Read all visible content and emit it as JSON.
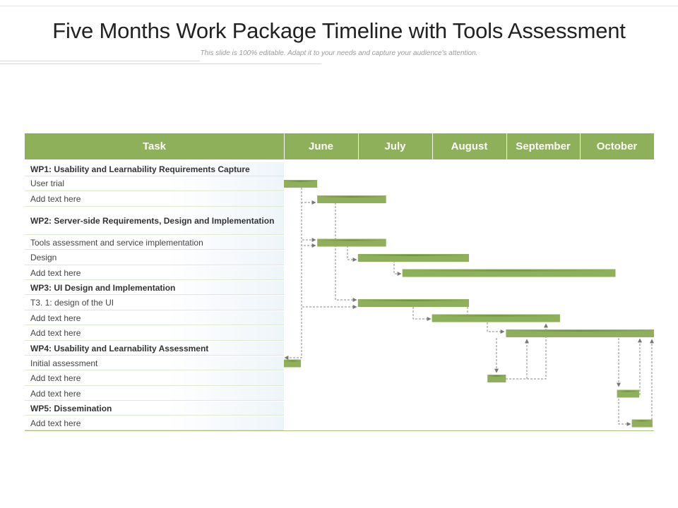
{
  "title": "Five Months Work Package Timeline with Tools Assessment",
  "subtitle": "This slide is 100% editable. Adapt it to your needs and capture your audience's attention.",
  "header": {
    "task_label": "Task",
    "months": [
      "June",
      "July",
      "August",
      "September",
      "October"
    ]
  },
  "rows": [
    {
      "label": "WP1: Usability and Learnability Requirements Capture",
      "kind": "wp"
    },
    {
      "label": "User trial",
      "kind": "task"
    },
    {
      "label": "Add text here",
      "kind": "task"
    },
    {
      "label": "WP2: Server-side Requirements, Design and Implementation",
      "kind": "wp"
    },
    {
      "label": "Tools assessment and service implementation",
      "kind": "task"
    },
    {
      "label": "Design",
      "kind": "task"
    },
    {
      "label": "Add text here",
      "kind": "task"
    },
    {
      "label": "WP3: UI Design and Implementation",
      "kind": "wp"
    },
    {
      "label": "T3. 1: design of the UI",
      "kind": "task"
    },
    {
      "label": "Add text here",
      "kind": "task"
    },
    {
      "label": "Add text here",
      "kind": "task"
    },
    {
      "label": "WP4: Usability and Learnability Assessment",
      "kind": "wp"
    },
    {
      "label": "Initial assessment",
      "kind": "task"
    },
    {
      "label": "Add text here",
      "kind": "task"
    },
    {
      "label": "Add text here",
      "kind": "task"
    },
    {
      "label": "WP5: Dissemination",
      "kind": "wp"
    },
    {
      "label": "Add text here",
      "kind": "task"
    }
  ],
  "colors": {
    "header_bg": "#8eb05a",
    "bar": "#8eb05a",
    "bar_shade": "#6e8f3d",
    "connector": "#8a8a8a"
  },
  "chart_data": {
    "type": "gantt",
    "time_unit": "months",
    "months": [
      "June",
      "July",
      "August",
      "September",
      "October"
    ],
    "bars": [
      {
        "row": 1,
        "start": 0.0,
        "end": 0.45
      },
      {
        "row": 2,
        "start": 0.45,
        "end": 1.38
      },
      {
        "row": 4,
        "start": 0.45,
        "end": 1.38
      },
      {
        "row": 5,
        "start": 1.0,
        "end": 2.5
      },
      {
        "row": 6,
        "start": 1.6,
        "end": 4.48
      },
      {
        "row": 8,
        "start": 1.0,
        "end": 2.5
      },
      {
        "row": 9,
        "start": 2.0,
        "end": 3.73
      },
      {
        "row": 10,
        "start": 3.0,
        "end": 5.0
      },
      {
        "row": 12,
        "start": 0.0,
        "end": 0.23
      },
      {
        "row": 13,
        "start": 2.75,
        "end": 3.0
      },
      {
        "row": 14,
        "start": 4.5,
        "end": 4.8
      },
      {
        "row": 16,
        "start": 4.7,
        "end": 4.98
      }
    ]
  }
}
